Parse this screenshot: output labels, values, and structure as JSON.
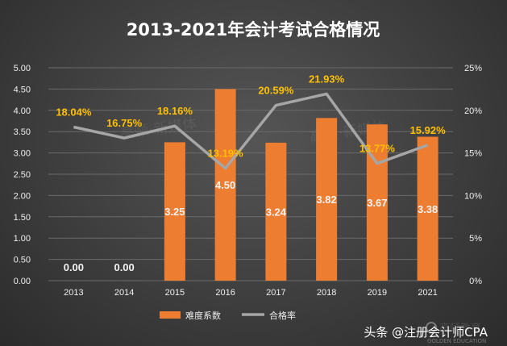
{
  "chart_data": {
    "type": "bar+line",
    "title": "2013-2021年会计考试合格情况",
    "categories": [
      "2013",
      "2014",
      "2015",
      "2016",
      "2017",
      "2018",
      "2019",
      "2021"
    ],
    "series": [
      {
        "name": "难度系数",
        "type": "bar",
        "axis": "left",
        "color": "#ed7d31",
        "values": [
          0.0,
          0.0,
          3.25,
          4.5,
          3.24,
          3.82,
          3.67,
          3.38
        ],
        "labels": [
          "0.00",
          "0.00",
          "3.25",
          "4.50",
          "3.24",
          "3.82",
          "3.67",
          "3.38"
        ]
      },
      {
        "name": "合格率",
        "type": "line",
        "axis": "right",
        "color": "#a6a6a6",
        "values": [
          18.04,
          16.75,
          18.16,
          13.19,
          20.59,
          21.93,
          13.77,
          15.92
        ],
        "labels": [
          "18.04%",
          "16.75%",
          "18.16%",
          "13.19%",
          "20.59%",
          "21.93%",
          "13.77%",
          "15.92%"
        ]
      }
    ],
    "y_left": {
      "range": [
        0,
        5
      ],
      "ticks": [
        "0.00",
        "0.50",
        "1.00",
        "1.50",
        "2.00",
        "2.50",
        "3.00",
        "3.50",
        "4.00",
        "4.50",
        "5.00"
      ]
    },
    "y_right": {
      "range": [
        0,
        25
      ],
      "ticks": [
        "0%",
        "5%",
        "10%",
        "15%",
        "20%",
        "25%"
      ]
    },
    "grid": true,
    "legend": "bottom",
    "label_color": "#ffc000"
  },
  "watermarks": [
    "高顿·新媒体",
    "高顿·新媒体"
  ],
  "footer": {
    "text": "头条 @注册会计师CPA"
  },
  "logo": {
    "name": "高顿教育",
    "sub": "GOLDEN EDUCATION"
  }
}
